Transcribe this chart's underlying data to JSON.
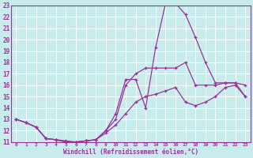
{
  "xlabel": "Windchill (Refroidissement éolien,°C)",
  "xlim": [
    -0.5,
    23.5
  ],
  "ylim": [
    11,
    23
  ],
  "xticks": [
    0,
    1,
    2,
    3,
    4,
    5,
    6,
    7,
    8,
    9,
    10,
    11,
    12,
    13,
    14,
    15,
    16,
    17,
    18,
    19,
    20,
    21,
    22,
    23
  ],
  "yticks": [
    11,
    12,
    13,
    14,
    15,
    16,
    17,
    18,
    19,
    20,
    21,
    22,
    23
  ],
  "bg_color": "#c8ecec",
  "line_color": "#993399",
  "grid_color": "#ffffff",
  "curve_upper_x": [
    0,
    1,
    2,
    3,
    4,
    5,
    6,
    7,
    8,
    9,
    10,
    11,
    12,
    13,
    14,
    15,
    16,
    17,
    18,
    19,
    20,
    21,
    22,
    23
  ],
  "curve_upper_y": [
    13.0,
    12.7,
    12.3,
    11.3,
    11.2,
    11.0,
    11.0,
    11.1,
    11.2,
    12.0,
    13.5,
    16.5,
    16.5,
    14.0,
    19.3,
    23.2,
    23.2,
    22.2,
    20.2,
    18.0,
    16.2,
    16.2,
    16.2,
    15.0
  ],
  "curve_mid_x": [
    0,
    1,
    2,
    3,
    4,
    5,
    6,
    7,
    8,
    9,
    10,
    11,
    12,
    13,
    14,
    15,
    16,
    17,
    18,
    19,
    20,
    21,
    22,
    23
  ],
  "curve_mid_y": [
    13.0,
    12.7,
    12.3,
    11.3,
    11.2,
    11.0,
    11.0,
    11.1,
    11.2,
    12.0,
    13.0,
    16.0,
    17.0,
    17.5,
    17.5,
    17.5,
    17.5,
    18.0,
    16.0,
    16.0,
    16.0,
    16.2,
    16.2,
    16.0
  ],
  "curve_low_x": [
    0,
    1,
    2,
    3,
    4,
    5,
    6,
    7,
    8,
    9,
    10,
    11,
    12,
    13,
    14,
    15,
    16,
    17,
    18,
    19,
    20,
    21,
    22,
    23
  ],
  "curve_low_y": [
    13.0,
    12.7,
    12.3,
    11.3,
    11.2,
    11.1,
    11.0,
    11.1,
    11.2,
    11.8,
    12.5,
    13.5,
    14.5,
    15.0,
    15.2,
    15.5,
    15.8,
    14.5,
    14.2,
    14.5,
    15.0,
    15.8,
    16.0,
    15.0
  ]
}
